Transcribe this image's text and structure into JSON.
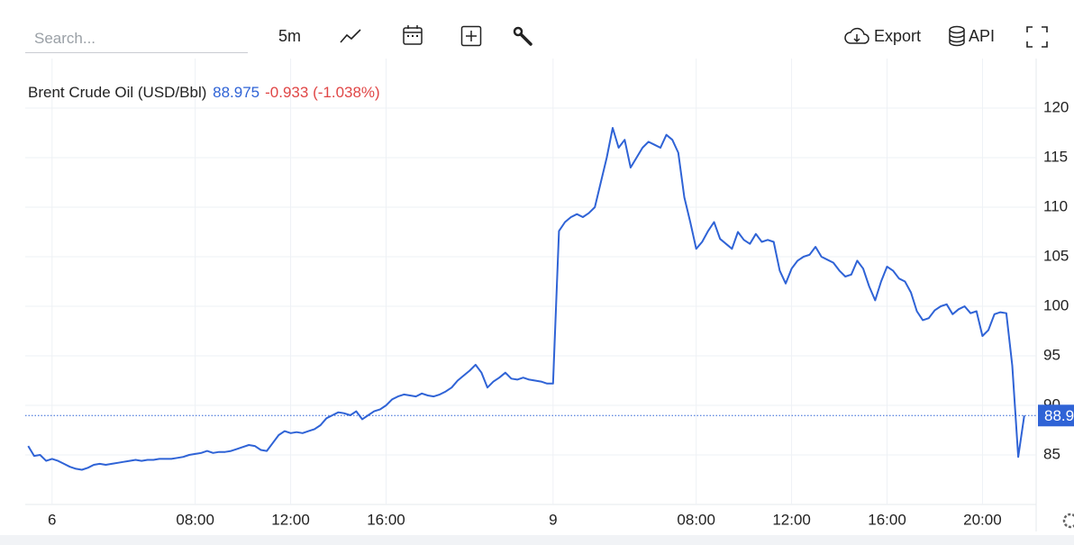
{
  "toolbar": {
    "search_placeholder": "Search...",
    "interval": "5m",
    "export": "Export",
    "api": "API"
  },
  "header": {
    "name": "Brent Crude Oil (USD/Bbl)",
    "price": "88.975",
    "change": "-0.933",
    "change_pct": "(-1.038%)"
  },
  "chart_data": {
    "type": "line",
    "color": "#2f63d6",
    "grid": true,
    "values": [
      85.9,
      84.9,
      85.0,
      84.4,
      84.6,
      84.4,
      84.1,
      83.8,
      83.6,
      83.5,
      83.7,
      84.0,
      84.1,
      84.0,
      84.1,
      84.2,
      84.3,
      84.4,
      84.5,
      84.4,
      84.5,
      84.5,
      84.6,
      84.6,
      84.6,
      84.7,
      84.8,
      85.0,
      85.1,
      85.2,
      85.4,
      85.2,
      85.3,
      85.3,
      85.4,
      85.6,
      85.8,
      86.0,
      85.9,
      85.5,
      85.4,
      86.2,
      87.0,
      87.4,
      87.2,
      87.3,
      87.2,
      87.4,
      87.6,
      88.0,
      88.7,
      89.0,
      89.3,
      89.2,
      89.0,
      89.4,
      88.6,
      89.0,
      89.4,
      89.6,
      90.0,
      90.6,
      90.9,
      91.1,
      91.0,
      90.9,
      91.2,
      91.0,
      90.9,
      91.1,
      91.4,
      91.8,
      92.5,
      93.0,
      93.5,
      94.1,
      93.3,
      91.8,
      92.4,
      92.8,
      93.3,
      92.7,
      92.6,
      92.8,
      92.6,
      92.5,
      92.4,
      92.2,
      92.2,
      107.6,
      108.5,
      109.0,
      109.3,
      109.0,
      109.4,
      110.0,
      112.5,
      115.0,
      118.0,
      116.0,
      116.8,
      114.0,
      115.0,
      116.0,
      116.6,
      116.3,
      116.0,
      117.3,
      116.8,
      115.5,
      111.0,
      108.5,
      105.8,
      106.5,
      107.6,
      108.5,
      106.8,
      106.3,
      105.8,
      107.5,
      106.7,
      106.3,
      107.3,
      106.5,
      106.7,
      106.5,
      103.6,
      102.3,
      103.8,
      104.6,
      105.0,
      105.2,
      106.0,
      105.0,
      104.7,
      104.4,
      103.6,
      103.0,
      103.2,
      104.6,
      103.8,
      102.0,
      100.6,
      102.5,
      104.0,
      103.6,
      102.8,
      102.5,
      101.4,
      99.5,
      98.6,
      98.8,
      99.6,
      100.0,
      100.2,
      99.2,
      99.7,
      100.0,
      99.3,
      99.5,
      97.0,
      97.6,
      99.2,
      99.4,
      99.3,
      94.0,
      84.8,
      88.975
    ],
    "xlim": [
      -0.5,
      169
    ],
    "xticks": [
      {
        "value": 4,
        "label": "6"
      },
      {
        "value": 28,
        "label": "08:00"
      },
      {
        "value": 44,
        "label": "12:00"
      },
      {
        "value": 60,
        "label": "16:00"
      },
      {
        "value": 88,
        "label": "9"
      },
      {
        "value": 112,
        "label": "08:00"
      },
      {
        "value": 128,
        "label": "12:00"
      },
      {
        "value": 144,
        "label": "16:00"
      },
      {
        "value": 160,
        "label": "20:00"
      }
    ],
    "ylim": [
      80,
      125
    ],
    "yticks": [
      85,
      90,
      95,
      100,
      105,
      110,
      115,
      120
    ]
  }
}
